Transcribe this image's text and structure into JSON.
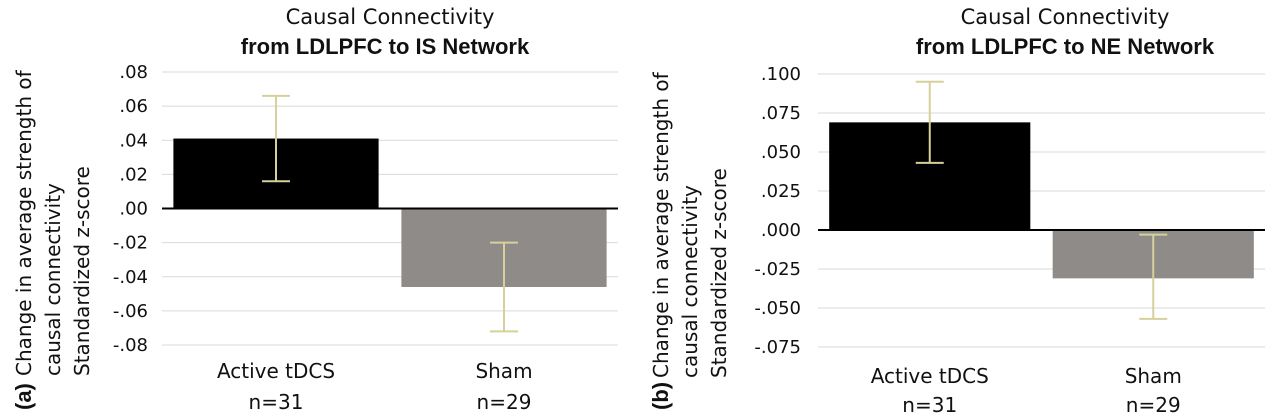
{
  "chart_data": [
    {
      "type": "bar",
      "panel_label": "(a)",
      "title": "Causal Connectivity",
      "subtitle": "from LDLPFC to IS Network",
      "ylabel_lines": [
        "Change in average strength of",
        "causal connectivity",
        "Standardized z-score"
      ],
      "xlabel": "",
      "categories": [
        "Active tDCS",
        "Sham"
      ],
      "category_n": [
        "n=31",
        "n=29"
      ],
      "values": [
        0.041,
        -0.046
      ],
      "error_high": [
        0.066,
        -0.02
      ],
      "error_low": [
        0.016,
        -0.072
      ],
      "ylim": [
        -0.08,
        0.08
      ],
      "yticks": [
        0.08,
        0.06,
        0.04,
        0.02,
        0.0,
        -0.02,
        -0.04,
        -0.06,
        -0.08
      ],
      "ytick_labels": [
        ".08",
        ".06",
        ".04",
        ".02",
        ".00",
        "-.02",
        "-.04",
        "-.06",
        "-.08"
      ],
      "bar_colors": [
        "#000000",
        "#8e8b89"
      ],
      "error_color": "#d6d19a",
      "grid": true
    },
    {
      "type": "bar",
      "panel_label": "(b)",
      "title": "Causal Connectivity",
      "subtitle": "from LDLPFC to NE Network",
      "ylabel_lines": [
        "Change in average strength of",
        "causal connectivity",
        "Standardized z-score"
      ],
      "xlabel": "",
      "categories": [
        "Active tDCS",
        "Sham"
      ],
      "category_n": [
        "n=31",
        "n=29"
      ],
      "values": [
        0.069,
        -0.031
      ],
      "error_high": [
        0.095,
        -0.003
      ],
      "error_low": [
        0.043,
        -0.057
      ],
      "ylim": [
        -0.075,
        0.1
      ],
      "yticks": [
        0.1,
        0.075,
        0.05,
        0.025,
        0.0,
        -0.025,
        -0.05,
        -0.075
      ],
      "ytick_labels": [
        ".100",
        ".075",
        ".050",
        ".025",
        ".000",
        "-.025",
        "-.050",
        "-.075"
      ],
      "bar_colors": [
        "#000000",
        "#8e8b89"
      ],
      "error_color": "#d6d19a",
      "grid": true
    }
  ]
}
